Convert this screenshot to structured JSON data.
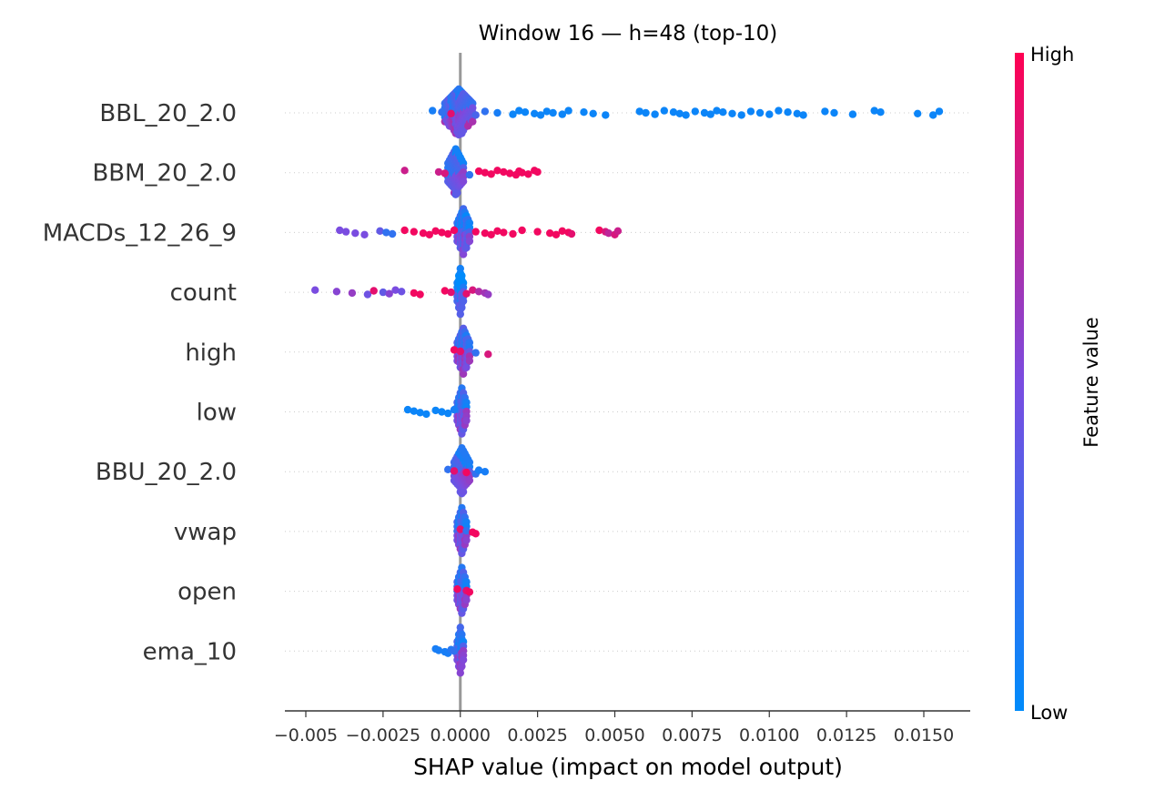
{
  "chart_data": {
    "type": "scatter",
    "subtype": "shap-beeswarm",
    "title": "Window 16 — h=48 (top-10)",
    "xlabel": "SHAP value (impact on model output)",
    "xlim": [
      -0.0063,
      0.0166
    ],
    "xticks": [
      -0.005,
      -0.0025,
      0.0,
      0.0025,
      0.005,
      0.0075,
      0.01,
      0.0125,
      0.015
    ],
    "xtick_labels": [
      "−0.005",
      "−0.0025",
      "0.0000",
      "0.0025",
      "0.0050",
      "0.0075",
      "0.0100",
      "0.0125",
      "0.0150"
    ],
    "zero_line": 0.0,
    "grid": "dotted horizontal rows per feature",
    "features": [
      "BBL_20_2.0",
      "BBM_20_2.0",
      "MACDs_12_26_9",
      "count",
      "high",
      "low",
      "BBU_20_2.0",
      "vwap",
      "open",
      "ema_10"
    ],
    "colorbar": {
      "label": "Feature value",
      "high_label": "High",
      "low_label": "Low",
      "high_color": "#ff0052",
      "low_color": "#008bfb"
    },
    "series": [
      {
        "feature": "BBL_20_2.0",
        "core": [
          -0.0005,
          0.0004
        ],
        "core_density": 5e-05,
        "core_value": 0.55,
        "points": [
          [
            -0.0009,
            0.1
          ],
          [
            -0.0006,
            0.2
          ],
          [
            -0.0003,
            0.9
          ],
          [
            0.0005,
            0.3
          ],
          [
            0.0008,
            0.2
          ],
          [
            0.0012,
            0.1
          ],
          [
            0.0017,
            0.05
          ],
          [
            0.0019,
            0.05
          ],
          [
            0.0021,
            0.05
          ],
          [
            0.0024,
            0.05
          ],
          [
            0.0026,
            0.05
          ],
          [
            0.0028,
            0.05
          ],
          [
            0.003,
            0.05
          ],
          [
            0.0033,
            0.05
          ],
          [
            0.0035,
            0.05
          ],
          [
            0.004,
            0.05
          ],
          [
            0.0043,
            0.05
          ],
          [
            0.0047,
            0.05
          ],
          [
            0.0058,
            0.05
          ],
          [
            0.006,
            0.05
          ],
          [
            0.0063,
            0.05
          ],
          [
            0.0066,
            0.05
          ],
          [
            0.0069,
            0.05
          ],
          [
            0.0071,
            0.05
          ],
          [
            0.0073,
            0.05
          ],
          [
            0.0076,
            0.05
          ],
          [
            0.0079,
            0.05
          ],
          [
            0.0081,
            0.05
          ],
          [
            0.0083,
            0.05
          ],
          [
            0.0085,
            0.05
          ],
          [
            0.0088,
            0.05
          ],
          [
            0.0091,
            0.05
          ],
          [
            0.0094,
            0.05
          ],
          [
            0.0097,
            0.05
          ],
          [
            0.01,
            0.05
          ],
          [
            0.0103,
            0.05
          ],
          [
            0.0106,
            0.05
          ],
          [
            0.0109,
            0.05
          ],
          [
            0.0111,
            0.05
          ],
          [
            0.0118,
            0.05
          ],
          [
            0.0121,
            0.05
          ],
          [
            0.0127,
            0.05
          ],
          [
            0.0134,
            0.05
          ],
          [
            0.0136,
            0.05
          ],
          [
            0.0148,
            0.05
          ],
          [
            0.0153,
            0.05
          ],
          [
            0.0155,
            0.05
          ]
        ]
      },
      {
        "feature": "BBM_20_2.0",
        "core": [
          -0.0004,
          0.0001
        ],
        "core_density": 5e-05,
        "core_value": 0.5,
        "points": [
          [
            -0.0018,
            0.8
          ],
          [
            -0.0007,
            0.8
          ],
          [
            -0.0005,
            0.85
          ],
          [
            0.0003,
            0.2
          ],
          [
            0.0006,
            0.95
          ],
          [
            0.0008,
            0.95
          ],
          [
            0.001,
            0.95
          ],
          [
            0.0012,
            0.95
          ],
          [
            0.0014,
            0.95
          ],
          [
            0.0016,
            0.95
          ],
          [
            0.0018,
            0.95
          ],
          [
            0.0019,
            0.95
          ],
          [
            0.002,
            0.95
          ],
          [
            0.0022,
            0.95
          ],
          [
            0.0024,
            0.95
          ],
          [
            0.0025,
            0.95
          ]
        ]
      },
      {
        "feature": "MACDs_12_26_9",
        "core": [
          -0.0001,
          0.0003
        ],
        "core_density": 5e-05,
        "core_value": 0.45,
        "points": [
          [
            -0.0039,
            0.5
          ],
          [
            -0.0037,
            0.5
          ],
          [
            -0.0034,
            0.5
          ],
          [
            -0.0031,
            0.5
          ],
          [
            -0.0026,
            0.4
          ],
          [
            -0.0024,
            0.2
          ],
          [
            -0.0022,
            0.2
          ],
          [
            -0.0018,
            0.95
          ],
          [
            -0.0015,
            0.95
          ],
          [
            -0.0012,
            0.95
          ],
          [
            -0.001,
            0.95
          ],
          [
            -0.0008,
            0.95
          ],
          [
            -0.0006,
            0.95
          ],
          [
            -0.0004,
            0.95
          ],
          [
            -0.0002,
            0.95
          ],
          [
            0.0005,
            0.95
          ],
          [
            0.0008,
            0.95
          ],
          [
            0.001,
            0.95
          ],
          [
            0.0012,
            0.95
          ],
          [
            0.0014,
            0.95
          ],
          [
            0.0017,
            0.95
          ],
          [
            0.002,
            0.95
          ],
          [
            0.0025,
            0.95
          ],
          [
            0.0029,
            0.95
          ],
          [
            0.0031,
            0.95
          ],
          [
            0.0033,
            0.95
          ],
          [
            0.0035,
            0.95
          ],
          [
            0.0036,
            0.9
          ],
          [
            0.0045,
            0.95
          ],
          [
            0.0047,
            0.85
          ],
          [
            0.0048,
            0.75
          ],
          [
            0.005,
            0.85
          ],
          [
            0.0051,
            0.8
          ]
        ]
      },
      {
        "feature": "count",
        "core": [
          -0.0001,
          0.0001
        ],
        "core_density": 5e-05,
        "core_value": 0.3,
        "points": [
          [
            -0.0047,
            0.5
          ],
          [
            -0.004,
            0.55
          ],
          [
            -0.0035,
            0.6
          ],
          [
            -0.003,
            0.45
          ],
          [
            -0.0028,
            0.9
          ],
          [
            -0.0025,
            0.4
          ],
          [
            -0.0023,
            0.55
          ],
          [
            -0.0021,
            0.5
          ],
          [
            -0.0019,
            0.45
          ],
          [
            -0.0015,
            0.95
          ],
          [
            -0.0013,
            0.95
          ],
          [
            -0.0005,
            0.95
          ],
          [
            -0.0003,
            0.9
          ],
          [
            0.0002,
            0.9
          ],
          [
            0.0004,
            0.85
          ],
          [
            0.0006,
            0.7
          ],
          [
            0.0008,
            0.65
          ],
          [
            0.0009,
            0.6
          ]
        ]
      },
      {
        "feature": "high",
        "core": [
          -0.0001,
          0.0003
        ],
        "core_density": 5e-05,
        "core_value": 0.55,
        "points": [
          [
            -0.0002,
            0.95
          ],
          [
            0.0,
            0.9
          ],
          [
            0.0005,
            0.2
          ],
          [
            0.0009,
            0.85
          ]
        ]
      },
      {
        "feature": "low",
        "core": [
          -0.0001,
          0.0002
        ],
        "core_density": 5e-05,
        "core_value": 0.5,
        "points": [
          [
            -0.0017,
            0.05
          ],
          [
            -0.0015,
            0.05
          ],
          [
            -0.0013,
            0.05
          ],
          [
            -0.0011,
            0.05
          ],
          [
            -0.0008,
            0.05
          ],
          [
            -0.0006,
            0.05
          ],
          [
            -0.0004,
            0.05
          ],
          [
            -0.0002,
            0.1
          ]
        ]
      },
      {
        "feature": "BBU_20_2.0",
        "core": [
          -0.0002,
          0.0003
        ],
        "core_density": 5e-05,
        "core_value": 0.5,
        "points": [
          [
            -0.0004,
            0.2
          ],
          [
            -0.0002,
            0.9
          ],
          [
            0.0002,
            0.95
          ],
          [
            0.0005,
            0.2
          ],
          [
            0.0006,
            0.1
          ],
          [
            0.0008,
            0.1
          ]
        ]
      },
      {
        "feature": "vwap",
        "core": [
          -0.0001,
          0.0002
        ],
        "core_density": 5e-05,
        "core_value": 0.5,
        "points": [
          [
            0.0,
            0.9
          ],
          [
            0.0002,
            0.2
          ],
          [
            0.0004,
            0.95
          ],
          [
            0.0005,
            0.95
          ]
        ]
      },
      {
        "feature": "open",
        "core": [
          -0.0001,
          0.0002
        ],
        "core_density": 5e-05,
        "core_value": 0.5,
        "points": [
          [
            -0.0001,
            0.95
          ],
          [
            0.0002,
            0.9
          ],
          [
            0.0003,
            0.95
          ]
        ]
      },
      {
        "feature": "ema_10",
        "core": [
          -0.0001,
          0.0001
        ],
        "core_density": 5e-05,
        "core_value": 0.5,
        "points": [
          [
            -0.0008,
            0.1
          ],
          [
            -0.0007,
            0.1
          ],
          [
            -0.0005,
            0.1
          ],
          [
            -0.0004,
            0.1
          ],
          [
            -0.0003,
            0.15
          ],
          [
            -0.0002,
            0.2
          ]
        ]
      }
    ]
  }
}
